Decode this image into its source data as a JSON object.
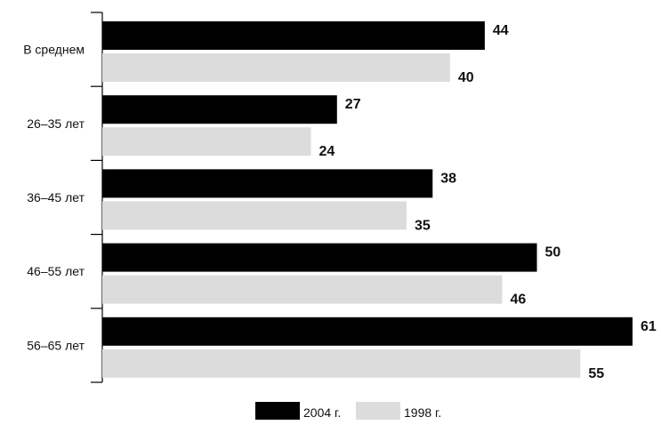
{
  "chart_data": {
    "type": "bar",
    "orientation": "horizontal",
    "categories": [
      "В среднем",
      "26–35 лет",
      "36–45 лет",
      "46–55 лет",
      "56–65 лет"
    ],
    "series": [
      {
        "name": "2004 г.",
        "values": [
          44,
          27,
          38,
          50,
          61
        ],
        "color": "#000000"
      },
      {
        "name": "1998 г.",
        "values": [
          40,
          24,
          35,
          46,
          55
        ],
        "color": "#dcdcdc"
      }
    ],
    "xlim": [
      0,
      61
    ],
    "grid": false,
    "legend": "bottom-center"
  }
}
